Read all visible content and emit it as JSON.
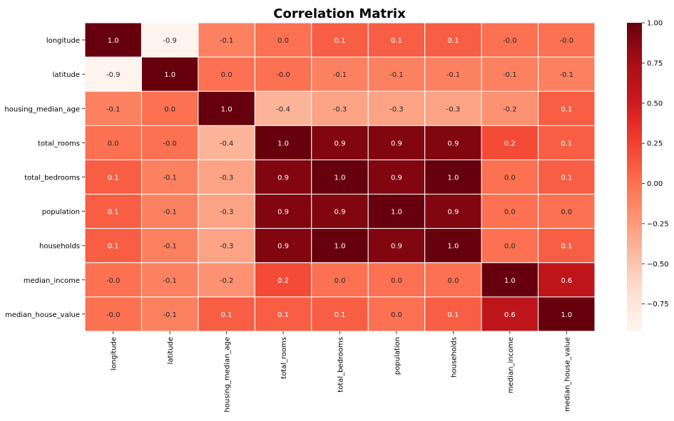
{
  "chart_data": {
    "type": "heatmap",
    "title": "Correlation Matrix",
    "xlabel": "",
    "ylabel": "",
    "variables": [
      "longitude",
      "latitude",
      "housing_median_age",
      "total_rooms",
      "total_bedrooms",
      "population",
      "households",
      "median_income",
      "median_house_value"
    ],
    "values": [
      [
        1.0,
        -0.9,
        -0.1,
        0.0,
        0.1,
        0.1,
        0.1,
        -0.0,
        -0.0
      ],
      [
        -0.9,
        1.0,
        0.0,
        -0.0,
        -0.1,
        -0.1,
        -0.1,
        -0.1,
        -0.1
      ],
      [
        -0.1,
        0.0,
        1.0,
        -0.4,
        -0.3,
        -0.3,
        -0.3,
        -0.2,
        0.1
      ],
      [
        0.0,
        -0.0,
        -0.4,
        1.0,
        0.9,
        0.9,
        0.9,
        0.2,
        0.1
      ],
      [
        0.1,
        -0.1,
        -0.3,
        0.9,
        1.0,
        0.9,
        1.0,
        0.0,
        0.1
      ],
      [
        0.1,
        -0.1,
        -0.3,
        0.9,
        0.9,
        1.0,
        0.9,
        0.0,
        0.0
      ],
      [
        0.1,
        -0.1,
        -0.3,
        0.9,
        1.0,
        0.9,
        1.0,
        0.0,
        0.1
      ],
      [
        -0.0,
        -0.1,
        -0.2,
        0.2,
        0.0,
        0.0,
        0.0,
        1.0,
        0.6
      ],
      [
        -0.0,
        -0.1,
        0.1,
        0.1,
        0.1,
        0.0,
        0.1,
        0.6,
        1.0
      ]
    ],
    "cell_labels": [
      [
        "1.0",
        "-0.9",
        "-0.1",
        "0.0",
        "0.1",
        "0.1",
        "0.1",
        "-0.0",
        "-0.0"
      ],
      [
        "-0.9",
        "1.0",
        "0.0",
        "-0.0",
        "-0.1",
        "-0.1",
        "-0.1",
        "-0.1",
        "-0.1"
      ],
      [
        "-0.1",
        "0.0",
        "1.0",
        "-0.4",
        "-0.3",
        "-0.3",
        "-0.3",
        "-0.2",
        "0.1"
      ],
      [
        "0.0",
        "-0.0",
        "-0.4",
        "1.0",
        "0.9",
        "0.9",
        "0.9",
        "0.2",
        "0.1"
      ],
      [
        "0.1",
        "-0.1",
        "-0.3",
        "0.9",
        "1.0",
        "0.9",
        "1.0",
        "0.0",
        "0.1"
      ],
      [
        "0.1",
        "-0.1",
        "-0.3",
        "0.9",
        "0.9",
        "1.0",
        "0.9",
        "0.0",
        "0.0"
      ],
      [
        "0.1",
        "-0.1",
        "-0.3",
        "0.9",
        "1.0",
        "0.9",
        "1.0",
        "0.0",
        "0.1"
      ],
      [
        "-0.0",
        "-0.1",
        "-0.2",
        "0.2",
        "0.0",
        "0.0",
        "0.0",
        "1.0",
        "0.6"
      ],
      [
        "-0.0",
        "-0.1",
        "0.1",
        "0.1",
        "0.1",
        "0.0",
        "0.1",
        "0.6",
        "1.0"
      ]
    ],
    "colormap": "Reds",
    "vmin": -0.92,
    "vmax": 1.0,
    "colorbar": {
      "ticks": [
        1.0,
        0.75,
        0.5,
        0.25,
        0.0,
        -0.25,
        -0.5,
        -0.75
      ],
      "tick_labels": [
        "1.00",
        "0.75",
        "0.50",
        "0.25",
        "0.00",
        "−0.25",
        "−0.50",
        "−0.75"
      ],
      "position": "right"
    },
    "grid_lines": true,
    "grid_color": "#ffffff"
  }
}
